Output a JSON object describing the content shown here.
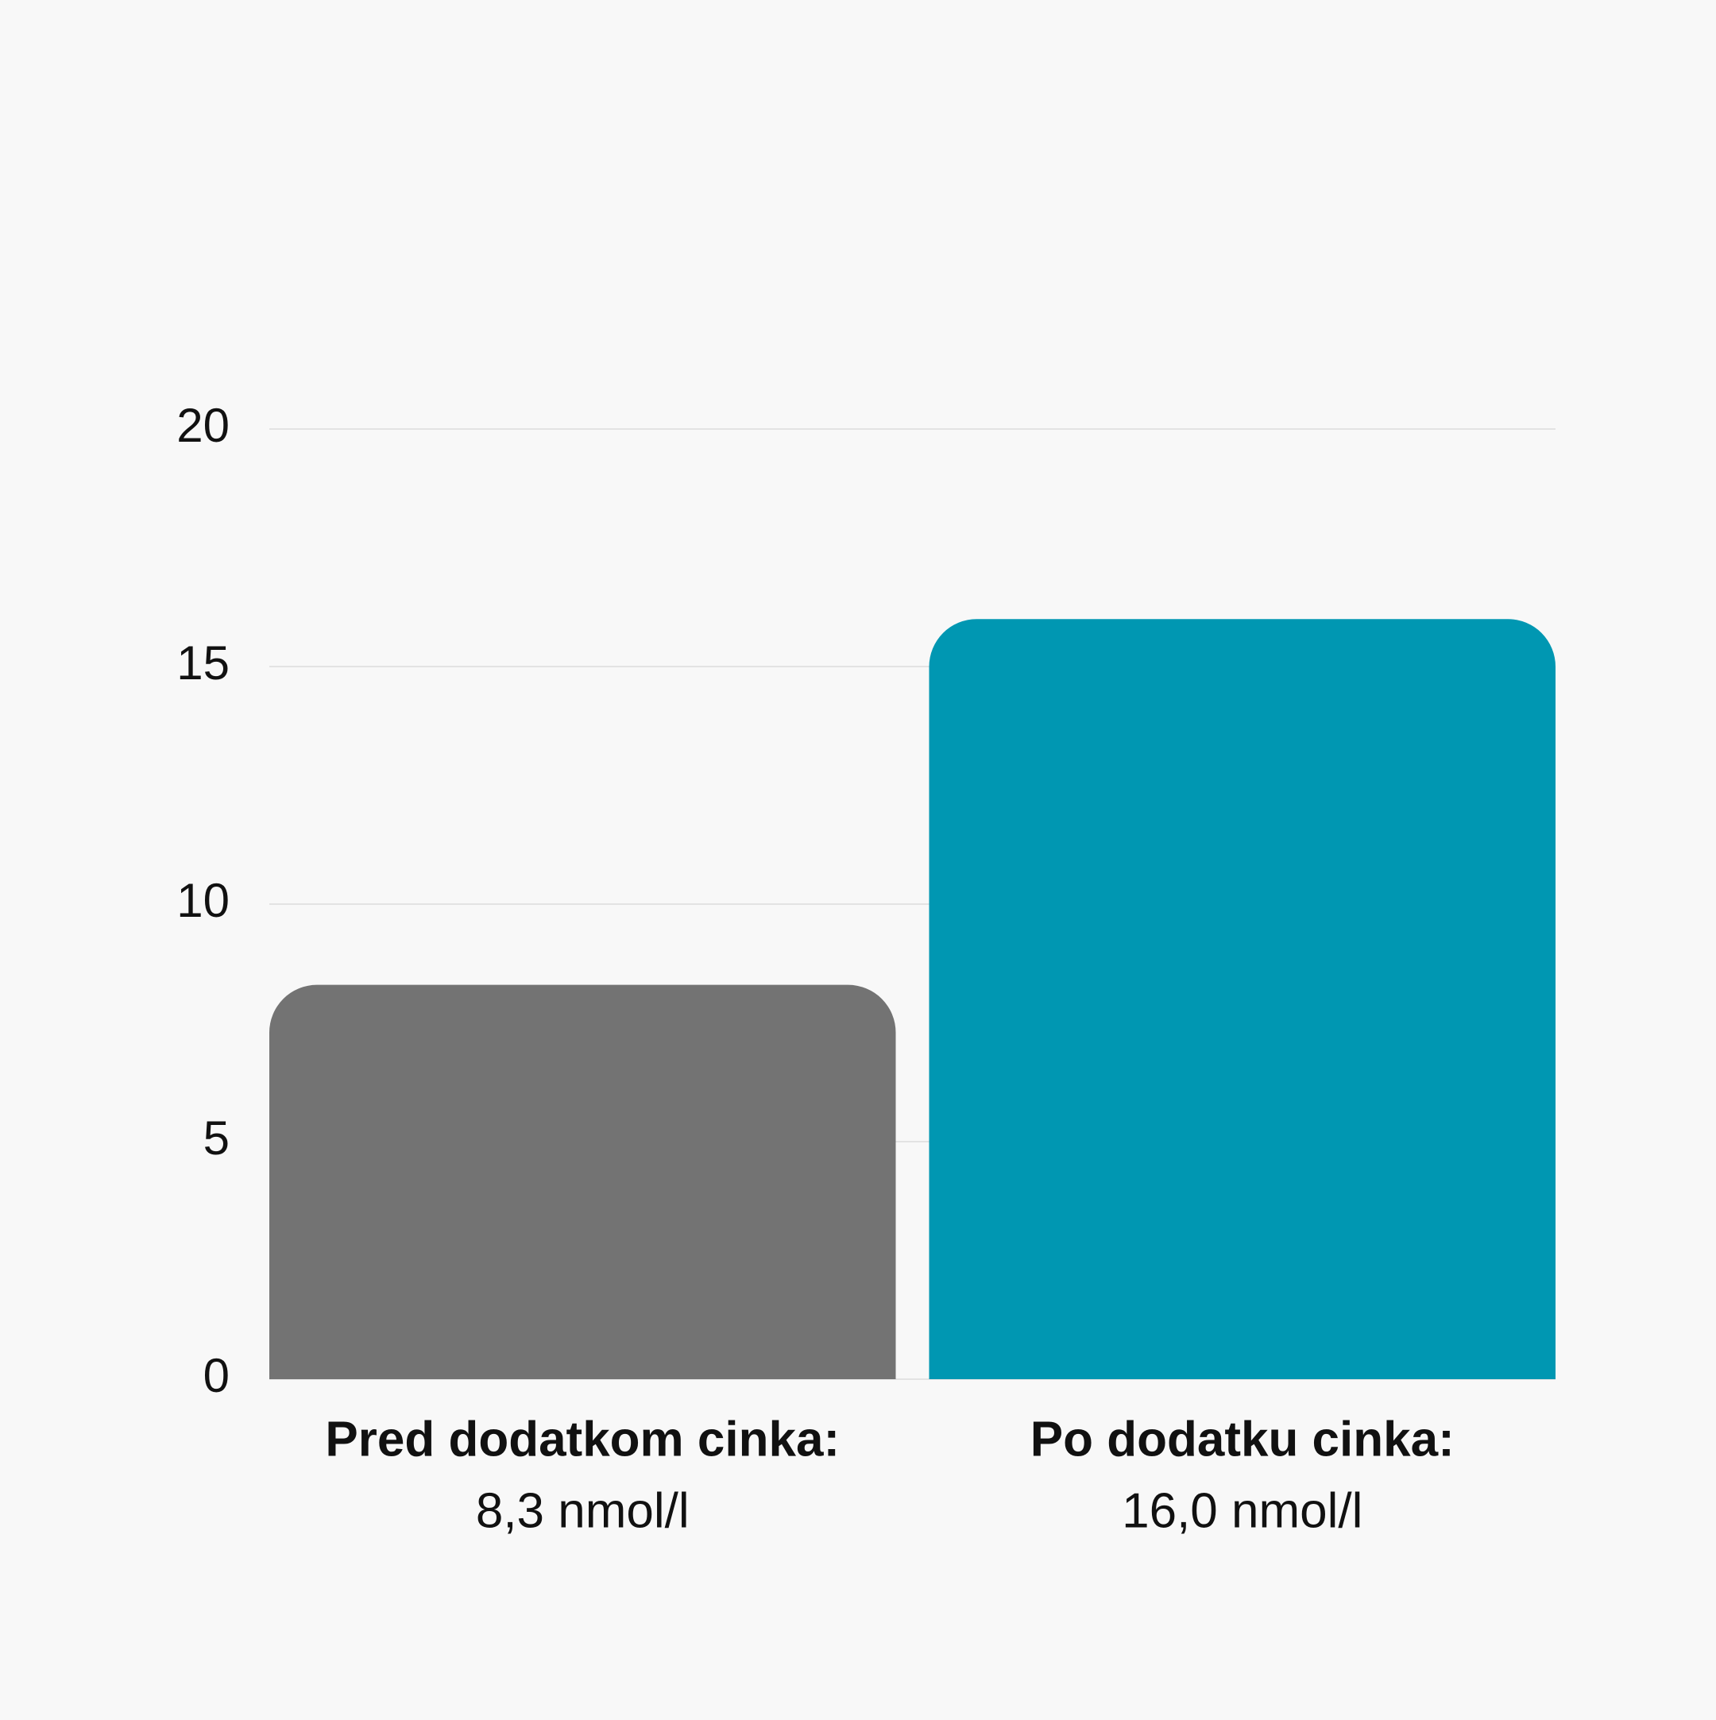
{
  "chart_data": {
    "type": "bar",
    "categories": [
      "Pred dodatkom cinka:",
      "Po dodatku cinka:"
    ],
    "values": [
      8.3,
      16.0
    ],
    "value_labels": [
      "8,3 nmol/l",
      "16,0 nmol/l"
    ],
    "colors": [
      "#737373",
      "#0097b2"
    ],
    "ylim": [
      0,
      20
    ],
    "yticks": [
      0,
      5,
      10,
      15,
      20
    ],
    "grid": true
  }
}
